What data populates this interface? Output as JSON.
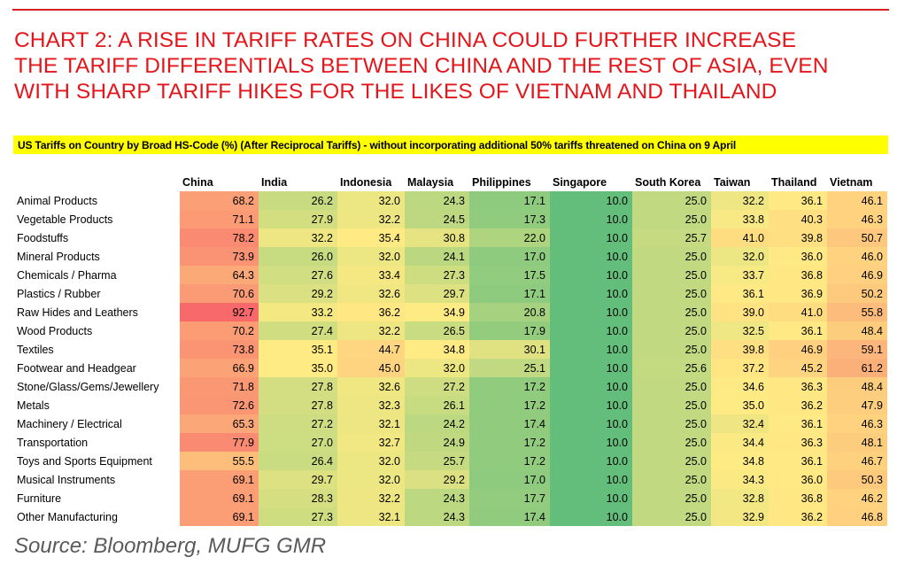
{
  "title_lines": [
    "CHART 2: A RISE IN TARIFF RATES ON CHINA COULD FURTHER INCREASE",
    "THE TARIFF DIFFERENTIALS BETWEEN CHINA AND THE REST OF ASIA, EVEN",
    "WITH SHARP TARIFF HIKES FOR THE LIKES OF VIETNAM AND THAILAND"
  ],
  "subtitle": "US Tariffs on Country by Broad HS-Code (%) (After Reciprocal Tariffs) - without incorporating additional 50% tariffs threatened on China on 9 April",
  "source": "Source: Bloomberg, MUFG GMR",
  "colors": {
    "title": "#e3161b",
    "highlight": "#ffff00",
    "scale_low": "#63be7b",
    "scale_mid": "#ffeb84",
    "scale_high": "#f8696b"
  },
  "chart_data": {
    "type": "heatmap",
    "value_range": [
      10.0,
      92.7
    ],
    "columns": [
      "China",
      "India",
      "Indonesia",
      "Malaysia",
      "Philippines",
      "Singapore",
      "South Korea",
      "Taiwan",
      "Thailand",
      "Vietnam"
    ],
    "rows": [
      {
        "label": "Animal Products",
        "values": [
          68.2,
          26.2,
          32.0,
          24.3,
          17.1,
          10.0,
          25.0,
          32.2,
          36.1,
          46.1
        ]
      },
      {
        "label": "Vegetable Products",
        "values": [
          71.1,
          27.9,
          32.2,
          24.5,
          17.3,
          10.0,
          25.0,
          33.8,
          40.3,
          46.3
        ]
      },
      {
        "label": "Foodstuffs",
        "values": [
          78.2,
          32.2,
          35.4,
          30.8,
          22.0,
          10.0,
          25.7,
          41.0,
          39.8,
          50.7
        ]
      },
      {
        "label": "Mineral Products",
        "values": [
          73.9,
          26.0,
          32.0,
          24.1,
          17.0,
          10.0,
          25.0,
          32.0,
          36.0,
          46.0
        ]
      },
      {
        "label": "Chemicals / Pharma",
        "values": [
          64.3,
          27.6,
          33.4,
          27.3,
          17.5,
          10.0,
          25.0,
          33.7,
          36.8,
          46.9
        ]
      },
      {
        "label": "Plastics / Rubber",
        "values": [
          70.6,
          29.2,
          32.6,
          29.7,
          17.1,
          10.0,
          25.0,
          36.1,
          36.9,
          50.2
        ]
      },
      {
        "label": "Raw Hides and Leathers",
        "values": [
          92.7,
          33.2,
          36.2,
          34.9,
          20.8,
          10.0,
          25.0,
          39.0,
          41.0,
          55.8
        ]
      },
      {
        "label": "Wood Products",
        "values": [
          70.2,
          27.4,
          32.2,
          26.5,
          17.9,
          10.0,
          25.0,
          32.5,
          36.1,
          48.4
        ]
      },
      {
        "label": "Textiles",
        "values": [
          73.8,
          35.1,
          44.7,
          34.8,
          30.1,
          10.0,
          25.0,
          39.8,
          46.9,
          59.1
        ]
      },
      {
        "label": "Footwear and Headgear",
        "values": [
          66.9,
          35.0,
          45.0,
          32.0,
          25.1,
          10.0,
          25.6,
          37.2,
          45.2,
          61.2
        ]
      },
      {
        "label": "Stone/Glass/Gems/Jewellery",
        "values": [
          71.8,
          27.8,
          32.6,
          27.2,
          17.2,
          10.0,
          25.0,
          34.6,
          36.3,
          48.4
        ]
      },
      {
        "label": "Metals",
        "values": [
          72.6,
          27.8,
          32.3,
          26.1,
          17.2,
          10.0,
          25.0,
          35.0,
          36.2,
          47.9
        ]
      },
      {
        "label": "Machinery / Electrical",
        "values": [
          65.3,
          27.2,
          32.1,
          24.2,
          17.4,
          10.0,
          25.0,
          32.4,
          36.1,
          46.3
        ]
      },
      {
        "label": "Transportation",
        "values": [
          77.9,
          27.0,
          32.7,
          24.9,
          17.2,
          10.0,
          25.0,
          34.4,
          36.3,
          48.1
        ]
      },
      {
        "label": "Toys and Sports Equipment",
        "values": [
          55.5,
          26.4,
          32.0,
          25.7,
          17.2,
          10.0,
          25.0,
          34.8,
          36.1,
          46.7
        ]
      },
      {
        "label": "Musical Instruments",
        "values": [
          69.1,
          29.7,
          32.0,
          29.2,
          17.0,
          10.0,
          25.0,
          34.3,
          36.0,
          50.3
        ]
      },
      {
        "label": "Furniture",
        "values": [
          69.1,
          28.3,
          32.2,
          24.3,
          17.7,
          10.0,
          25.0,
          32.8,
          36.8,
          46.2
        ]
      },
      {
        "label": "Other Manufacturing",
        "values": [
          69.1,
          27.3,
          32.1,
          24.3,
          17.4,
          10.0,
          25.0,
          32.9,
          36.2,
          46.8
        ]
      }
    ]
  }
}
